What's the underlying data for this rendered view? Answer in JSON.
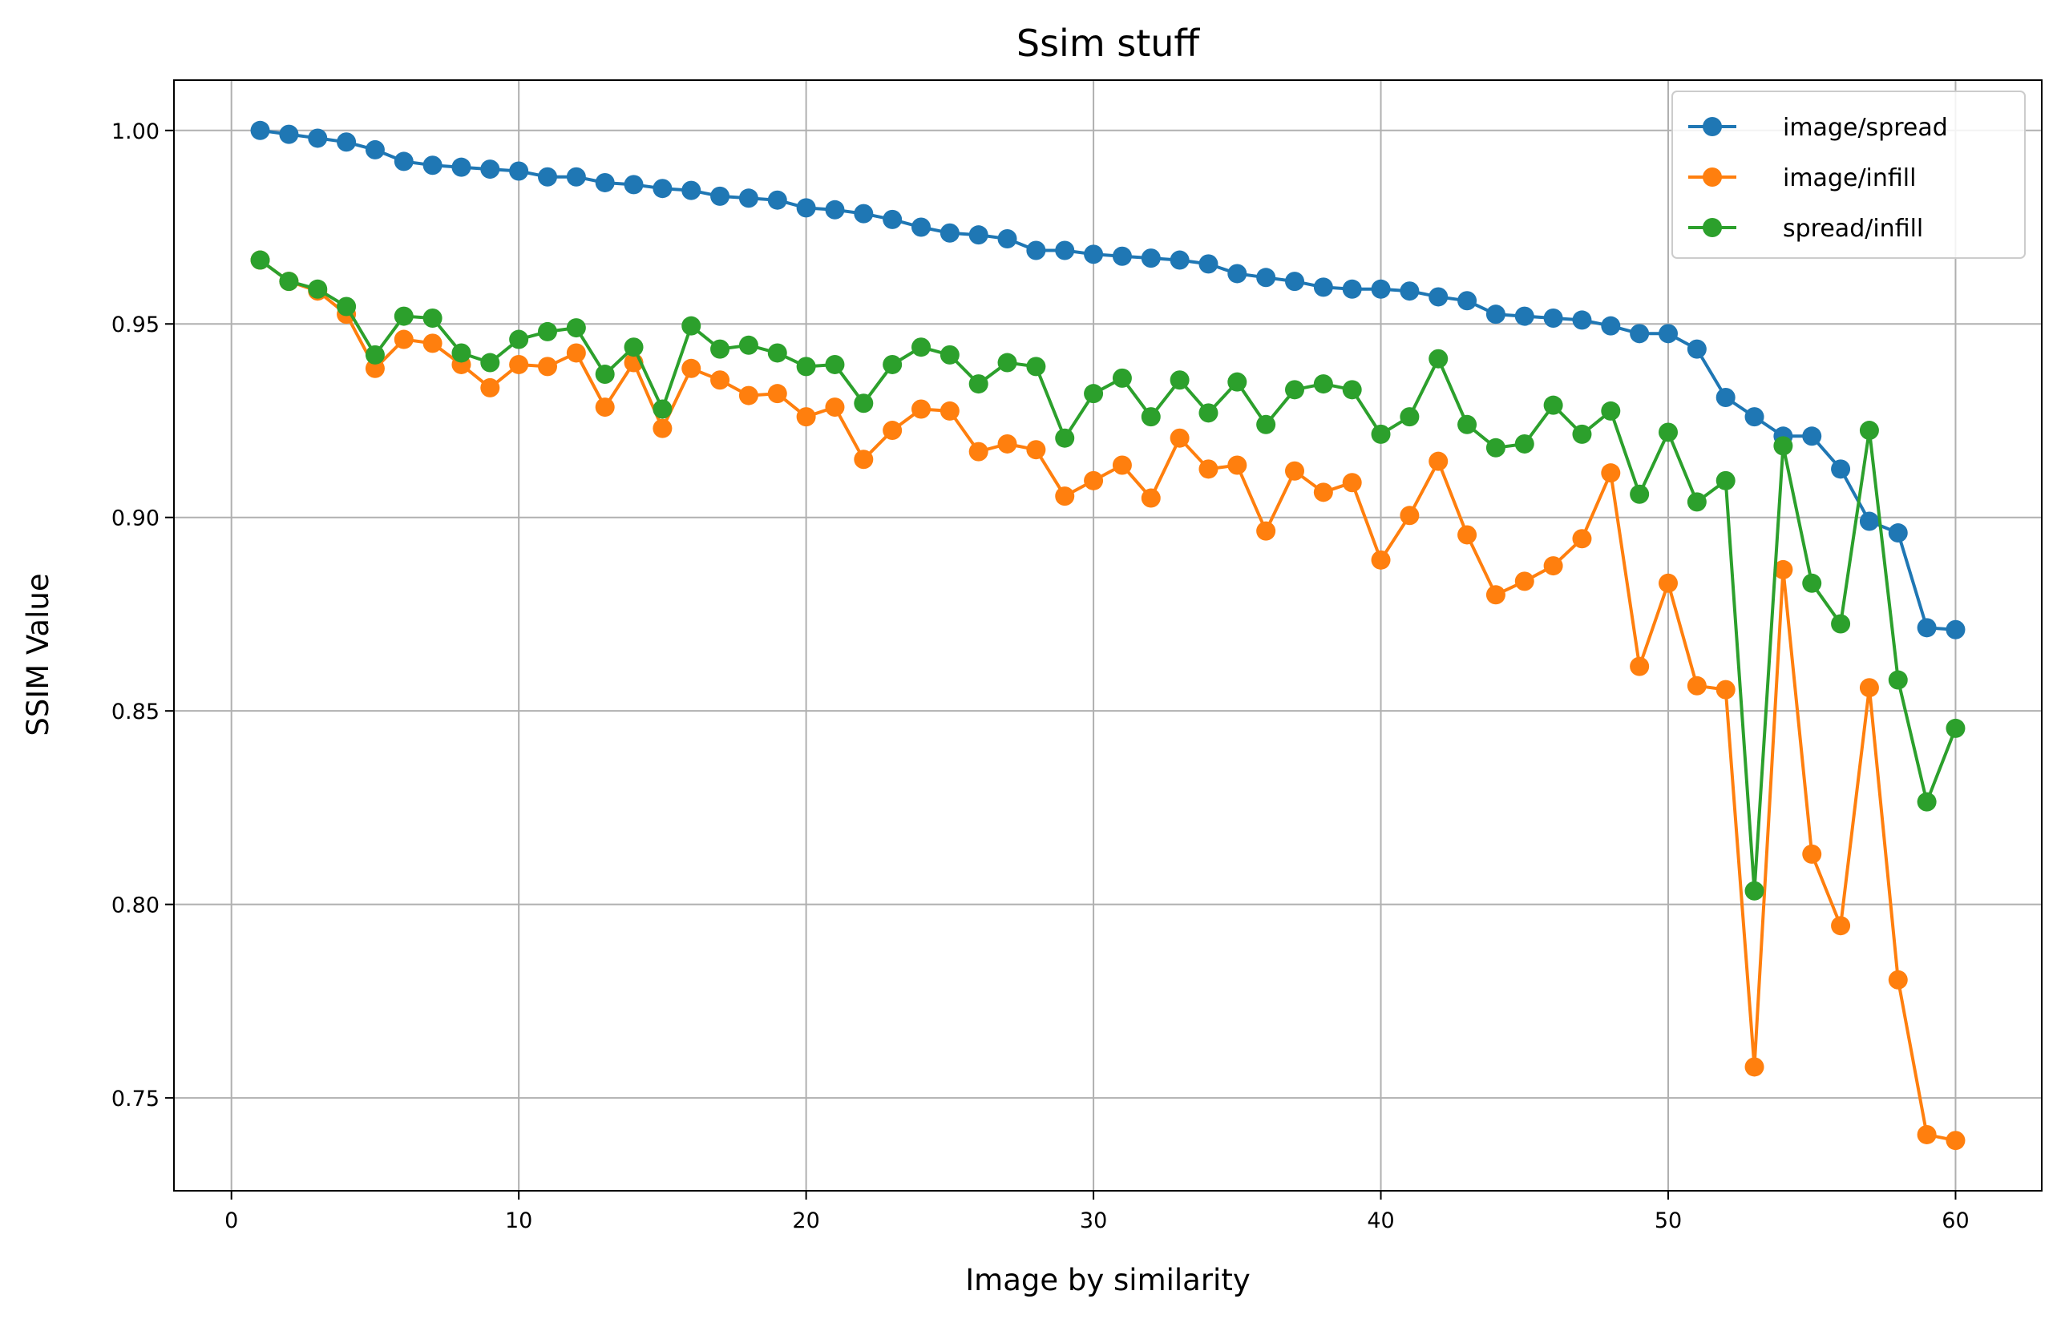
{
  "chart_data": {
    "type": "line",
    "title": "Ssim stuff",
    "xlabel": "Image by similarity",
    "ylabel": "SSIM Value",
    "xlim": [
      -2,
      63
    ],
    "ylim": [
      0.726,
      1.013
    ],
    "xticks": [
      0,
      10,
      20,
      30,
      40,
      50,
      60
    ],
    "xtick_labels": [
      "0",
      "10",
      "20",
      "30",
      "40",
      "50",
      "60"
    ],
    "yticks": [
      0.75,
      0.8,
      0.85,
      0.9,
      0.95,
      1.0
    ],
    "ytick_labels": [
      "0.75",
      "0.80",
      "0.85",
      "0.90",
      "0.95",
      "1.00"
    ],
    "grid": true,
    "legend_position": "top-right",
    "x": [
      1,
      2,
      3,
      4,
      5,
      6,
      7,
      8,
      9,
      10,
      11,
      12,
      13,
      14,
      15,
      16,
      17,
      18,
      19,
      20,
      21,
      22,
      23,
      24,
      25,
      26,
      27,
      28,
      29,
      30,
      31,
      32,
      33,
      34,
      35,
      36,
      37,
      38,
      39,
      40,
      41,
      42,
      43,
      44,
      45,
      46,
      47,
      48,
      49,
      50,
      51,
      52,
      53,
      54,
      55,
      56,
      57,
      58,
      59,
      60
    ],
    "series": [
      {
        "name": "image/spread",
        "color": "#1f77b4",
        "values": [
          1.0,
          0.999,
          0.998,
          0.997,
          0.995,
          0.992,
          0.991,
          0.9905,
          0.99,
          0.9895,
          0.988,
          0.988,
          0.9865,
          0.986,
          0.985,
          0.9845,
          0.983,
          0.9825,
          0.982,
          0.98,
          0.9795,
          0.9785,
          0.977,
          0.975,
          0.9735,
          0.973,
          0.972,
          0.969,
          0.969,
          0.968,
          0.9675,
          0.967,
          0.9665,
          0.9655,
          0.963,
          0.962,
          0.961,
          0.9595,
          0.959,
          0.959,
          0.9585,
          0.957,
          0.956,
          0.9525,
          0.952,
          0.9515,
          0.951,
          0.9495,
          0.9475,
          0.9475,
          0.9435,
          0.931,
          0.926,
          0.921,
          0.921,
          0.9125,
          0.899,
          0.896,
          0.8715,
          0.871
        ]
      },
      {
        "name": "image/infill",
        "color": "#ff7f0e",
        "values": [
          0.9665,
          0.961,
          0.9585,
          0.9525,
          0.9385,
          0.946,
          0.945,
          0.9395,
          0.9335,
          0.9395,
          0.939,
          0.9425,
          0.9285,
          0.94,
          0.923,
          0.9385,
          0.9355,
          0.9315,
          0.932,
          0.926,
          0.9285,
          0.915,
          0.9225,
          0.928,
          0.9275,
          0.917,
          0.919,
          0.9175,
          0.9055,
          0.9095,
          0.9135,
          0.905,
          0.9205,
          0.9125,
          0.9135,
          0.8965,
          0.912,
          0.9065,
          0.909,
          0.889,
          0.9005,
          0.9145,
          0.8955,
          0.88,
          0.8835,
          0.8875,
          0.8945,
          0.9115,
          0.8615,
          0.883,
          0.8565,
          0.8555,
          0.758,
          0.8865,
          0.813,
          0.7945,
          0.856,
          0.7805,
          0.7405,
          0.739
        ]
      },
      {
        "name": "spread/infill",
        "color": "#2ca02c",
        "values": [
          0.9665,
          0.961,
          0.959,
          0.9545,
          0.942,
          0.952,
          0.9515,
          0.9425,
          0.94,
          0.946,
          0.948,
          0.949,
          0.937,
          0.944,
          0.928,
          0.9495,
          0.9435,
          0.9445,
          0.9425,
          0.939,
          0.9395,
          0.9295,
          0.9395,
          0.944,
          0.942,
          0.9345,
          0.94,
          0.939,
          0.9205,
          0.932,
          0.936,
          0.926,
          0.9355,
          0.927,
          0.935,
          0.924,
          0.933,
          0.9345,
          0.933,
          0.9215,
          0.926,
          0.941,
          0.924,
          0.918,
          0.919,
          0.929,
          0.9215,
          0.9275,
          0.906,
          0.922,
          0.904,
          0.9095,
          0.8035,
          0.9185,
          0.883,
          0.8725,
          0.9225,
          0.858,
          0.8265,
          0.8455
        ]
      }
    ]
  }
}
